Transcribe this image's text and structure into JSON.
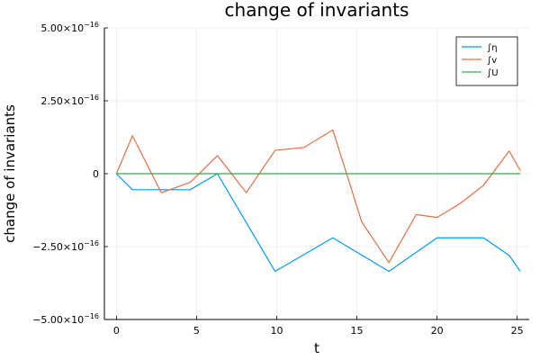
{
  "chart_data": {
    "type": "line",
    "title": "change of invariants",
    "xlabel": "t",
    "ylabel": "change of invariants",
    "xlim": [
      -0.75,
      25.75
    ],
    "ylim": [
      -5e-16,
      5e-16
    ],
    "x_ticks": [
      0,
      5,
      10,
      15,
      20,
      25
    ],
    "x_tick_labels": [
      "0",
      "5",
      "10",
      "15",
      "20",
      "25"
    ],
    "y_ticks": [
      {
        "value": 5e-16,
        "mantissa": "5.00×10",
        "exponent": "−16"
      },
      {
        "value": 2.5e-16,
        "mantissa": "2.50×10",
        "exponent": "−16"
      },
      {
        "value": 0,
        "mantissa": "0",
        "exponent": ""
      },
      {
        "value": -2.5e-16,
        "mantissa": "−2.50×10",
        "exponent": "−16"
      },
      {
        "value": -5e-16,
        "mantissa": "−5.00×10",
        "exponent": "−16"
      }
    ],
    "grid": true,
    "legend_position": "top-right",
    "series": [
      {
        "name": "∫η",
        "color": "#009AFA",
        "x": [
          0,
          1.0,
          4.6,
          6.3,
          9.9,
          13.5,
          17.0,
          20.0,
          22.9,
          24.5,
          25.2
        ],
        "y": [
          0,
          -5.5e-17,
          -5.5e-17,
          0,
          -3.35e-16,
          -2.2e-16,
          -3.35e-16,
          -2.2e-16,
          -2.2e-16,
          -2.8e-16,
          -3.35e-16
        ]
      },
      {
        "name": "∫v",
        "color": "#E26F46",
        "x": [
          0,
          1.0,
          2.8,
          4.6,
          6.3,
          8.1,
          9.9,
          11.7,
          13.5,
          15.3,
          17.0,
          18.7,
          20.0,
          21.5,
          22.9,
          24.5,
          25.2
        ],
        "y": [
          0,
          1.3e-16,
          -6.5e-17,
          -3e-17,
          6.2e-17,
          -6.5e-17,
          8e-17,
          9e-17,
          1.5e-16,
          -1.65e-16,
          -3.05e-16,
          -1.4e-16,
          -1.5e-16,
          -1e-16,
          -4e-17,
          7.8e-17,
          1e-17
        ]
      },
      {
        "name": "∫U",
        "color": "#3EA44E",
        "x": [
          0,
          25.2
        ],
        "y": [
          0,
          0
        ]
      }
    ]
  }
}
